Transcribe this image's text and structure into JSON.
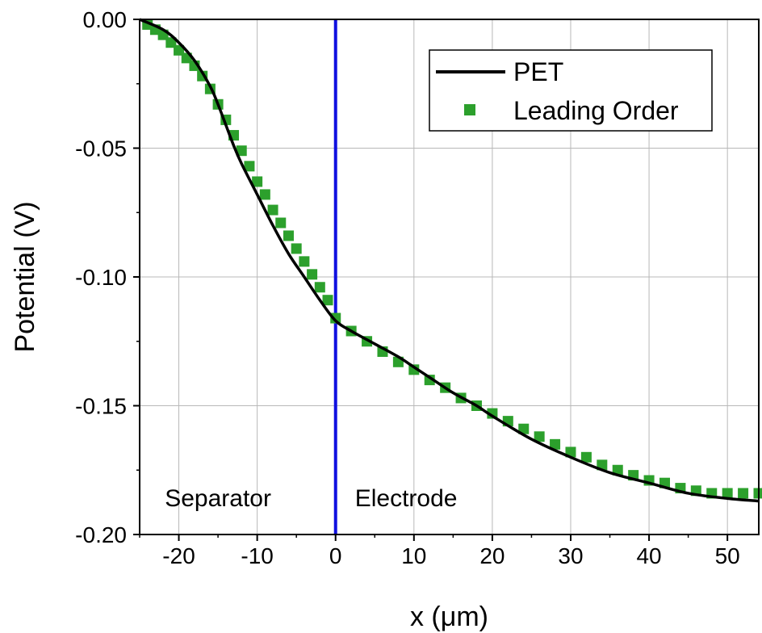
{
  "chart_data": {
    "type": "line",
    "xlabel": "x (μm)",
    "ylabel": "Potential (V)",
    "xlim": [
      -25,
      54
    ],
    "ylim": [
      -0.2,
      0.0
    ],
    "grid": true,
    "x_ticks": [
      -20,
      -10,
      0,
      10,
      20,
      30,
      40,
      50
    ],
    "x_tick_labels": [
      "-20",
      "-10",
      "0",
      "10",
      "20",
      "30",
      "40",
      "50"
    ],
    "y_ticks": [
      0.0,
      -0.05,
      -0.1,
      -0.15,
      -0.2
    ],
    "y_tick_labels": [
      "0.00",
      "-0.05",
      "-0.10",
      "-0.15",
      "-0.20"
    ],
    "legend_position": "top-right",
    "interface": {
      "x": 0,
      "color": "#1010e0"
    },
    "annotations": [
      {
        "text": "Separator",
        "x": -15,
        "y": -0.189
      },
      {
        "text": "Electrode",
        "x": 9,
        "y": -0.189
      }
    ],
    "series": [
      {
        "name": "PET",
        "style": "line",
        "color": "#000000",
        "x": [
          -25,
          -22,
          -20,
          -18,
          -16,
          -15,
          -14,
          -13,
          -12,
          -10,
          -8,
          -6,
          -4,
          -2,
          0,
          2,
          5,
          8,
          10,
          12,
          15,
          18,
          20,
          25,
          30,
          35,
          40,
          45,
          50,
          54
        ],
        "y": [
          0.0,
          -0.004,
          -0.009,
          -0.016,
          -0.026,
          -0.033,
          -0.041,
          -0.049,
          -0.056,
          -0.068,
          -0.08,
          -0.091,
          -0.1,
          -0.109,
          -0.117,
          -0.121,
          -0.126,
          -0.131,
          -0.135,
          -0.139,
          -0.145,
          -0.15,
          -0.154,
          -0.163,
          -0.17,
          -0.176,
          -0.18,
          -0.184,
          -0.186,
          -0.187
        ]
      },
      {
        "name": "Leading Order",
        "style": "scatter",
        "color": "#2ca02c",
        "x": [
          -24,
          -23,
          -22,
          -21,
          -20,
          -19,
          -18,
          -17,
          -16,
          -15,
          -14,
          -13,
          -12,
          -11,
          -10,
          -9,
          -8,
          -7,
          -6,
          -5,
          -4,
          -3,
          -2,
          -1,
          0,
          2,
          4,
          6,
          8,
          10,
          12,
          14,
          16,
          18,
          20,
          22,
          24,
          26,
          28,
          30,
          32,
          34,
          36,
          38,
          40,
          42,
          44,
          46,
          48,
          50,
          52,
          54
        ],
        "y": [
          -0.002,
          -0.004,
          -0.006,
          -0.009,
          -0.012,
          -0.015,
          -0.018,
          -0.022,
          -0.027,
          -0.033,
          -0.039,
          -0.045,
          -0.051,
          -0.057,
          -0.063,
          -0.068,
          -0.074,
          -0.079,
          -0.084,
          -0.089,
          -0.094,
          -0.099,
          -0.104,
          -0.109,
          -0.116,
          -0.121,
          -0.125,
          -0.129,
          -0.133,
          -0.136,
          -0.14,
          -0.143,
          -0.147,
          -0.15,
          -0.153,
          -0.156,
          -0.159,
          -0.162,
          -0.165,
          -0.168,
          -0.17,
          -0.173,
          -0.175,
          -0.177,
          -0.179,
          -0.18,
          -0.182,
          -0.183,
          -0.184,
          -0.184,
          -0.184,
          -0.184
        ]
      }
    ]
  }
}
